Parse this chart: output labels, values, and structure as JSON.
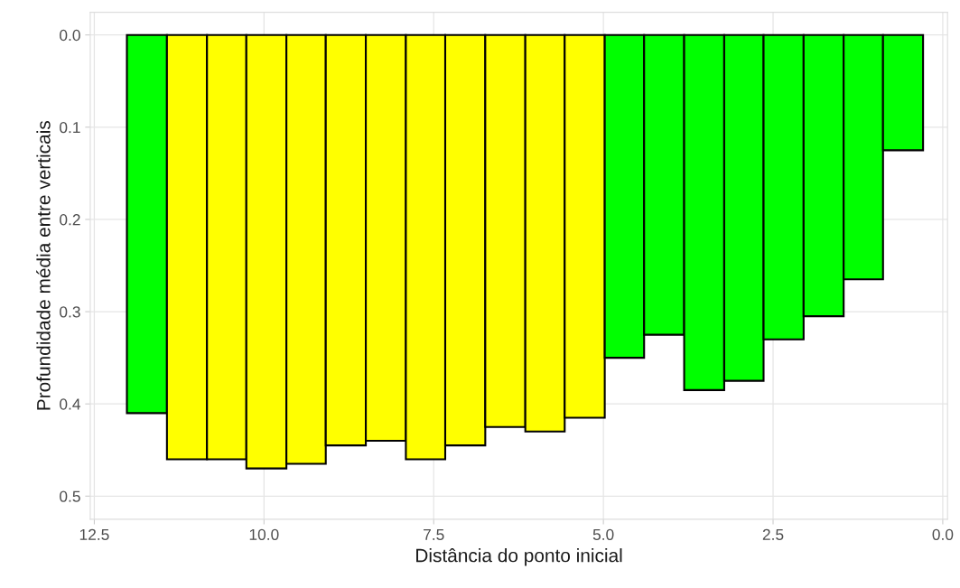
{
  "chart_data": {
    "type": "histogram",
    "xlabel": "Distância do ponto inicial",
    "ylabel": "Profundidade média entre verticais",
    "bins": [
      12.02,
      11.43,
      10.84,
      10.26,
      9.67,
      9.09,
      8.5,
      7.91,
      7.33,
      6.74,
      6.15,
      5.57,
      4.98,
      4.4,
      3.81,
      3.22,
      2.64,
      2.05,
      1.46,
      0.88,
      0.29
    ],
    "values": [
      0.41,
      0.46,
      0.46,
      0.47,
      0.465,
      0.445,
      0.44,
      0.46,
      0.445,
      0.425,
      0.43,
      0.415,
      0.35,
      0.325,
      0.385,
      0.375,
      0.33,
      0.305,
      0.265,
      0.125
    ],
    "colors": [
      "#00ff00",
      "#ffff00",
      "#ffff00",
      "#ffff00",
      "#ffff00",
      "#ffff00",
      "#ffff00",
      "#ffff00",
      "#ffff00",
      "#ffff00",
      "#ffff00",
      "#ffff00",
      "#00ff00",
      "#00ff00",
      "#00ff00",
      "#00ff00",
      "#00ff00",
      "#00ff00",
      "#00ff00",
      "#00ff00"
    ],
    "xlim": [
      12.56,
      -0.07
    ],
    "ylim": [
      0.525,
      -0.0245
    ],
    "xticks": [
      {
        "value": 12.5,
        "label": "12.5"
      },
      {
        "value": 10,
        "label": "10.0"
      },
      {
        "value": 7.5,
        "label": "7.5"
      },
      {
        "value": 5,
        "label": "5.0"
      },
      {
        "value": 2.5,
        "label": "2.5"
      },
      {
        "value": 0,
        "label": "0.0"
      }
    ],
    "yticks": [
      {
        "value": 0,
        "label": "0.0"
      },
      0.1,
      0.2,
      0.3,
      0.4,
      0.5
    ],
    "grid": true
  }
}
